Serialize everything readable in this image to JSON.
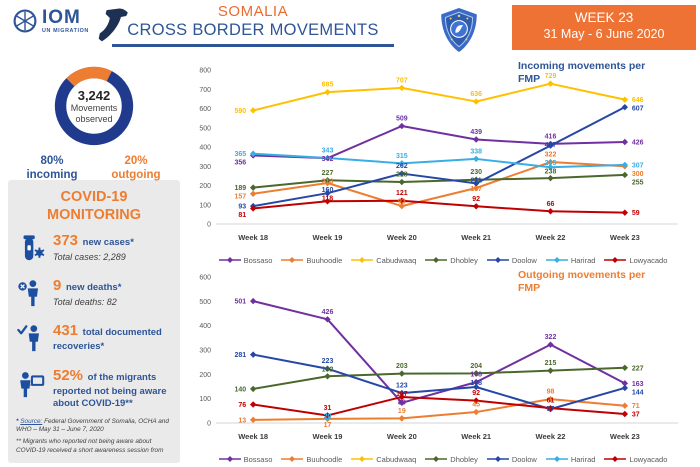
{
  "header": {
    "logo_text": "IOM",
    "logo_sub": "UN MIGRATION",
    "title": "SOMALIA",
    "subtitle": "CROSS BORDER MOVEMENTS",
    "week": "WEEK 23",
    "date_range": "31 May -  6 June 2020",
    "icons": [
      "iom-emblem-icon",
      "somalia-map-icon",
      "somalia-crest-icon"
    ]
  },
  "movements": {
    "total": "3,242",
    "label1": "Movements",
    "label2": "observed",
    "incoming_pct": "80%",
    "incoming_label": "incoming",
    "outgoing_pct": "20%",
    "outgoing_label": "outgoing"
  },
  "covid": {
    "title_line1": "COVID-19",
    "title_line2": "MONITORING",
    "stats": [
      {
        "icon": "vial-virus-icon",
        "value": "373",
        "label": "new cases*",
        "sub": "Total cases: 2,289"
      },
      {
        "icon": "person-x-icon",
        "value": "9",
        "label": "new deaths*",
        "sub": "Total deaths: 82"
      },
      {
        "icon": "person-check-icon",
        "value": "431",
        "label": "total documented recoveries*",
        "sub": ""
      },
      {
        "icon": "person-speech-bubble-icon",
        "value": "52%",
        "label": "of the migrants reported not being aware about COVID-19**",
        "sub": ""
      }
    ],
    "footnote1_star": "*",
    "footnote1_link": "Source:",
    "footnote1_rest": " Federal Government of Somalia, OCHA and WHO – May 31 – June 7, 2020",
    "footnote2": "** Migrants who reported not being aware about COVID-19 received a short awareness session from"
  },
  "colors": {
    "brand_blue": "#2E5597",
    "brand_orange": "#ED7D31",
    "donut_blue": "#203B8E",
    "week_box_orange": "#ED7233",
    "icon_blue": "#1D4FA1"
  },
  "chart_data": [
    {
      "type": "line",
      "title": "Incoming movements per FMP",
      "title_color": "#2E5597",
      "categories": [
        "Week 18",
        "Week 19",
        "Week 20",
        "Week 21",
        "Week 22",
        "Week 23"
      ],
      "ylim": [
        0,
        800
      ],
      "ytick_step": 100,
      "grid": false,
      "legend_position": "bottom",
      "series": [
        {
          "name": "Bossaso",
          "color": "#7030A0",
          "values": [
            356,
            342,
            509,
            439,
            416,
            426
          ]
        },
        {
          "name": "Buuhoodle",
          "color": "#ED7D31",
          "values": [
            157,
            213,
            93,
            187,
            322,
            300
          ]
        },
        {
          "name": "Cabudwaaq",
          "color": "#FFC000",
          "values": [
            590,
            685,
            707,
            636,
            729,
            646
          ]
        },
        {
          "name": "Dhobley",
          "color": "#4A682C",
          "values": [
            189,
            227,
            218,
            230,
            238,
            255
          ]
        },
        {
          "name": "Doolow",
          "color": "#2647A5",
          "values": [
            93,
            160,
            262,
            211,
            407,
            607
          ]
        },
        {
          "name": "Harirad",
          "color": "#38AEE4",
          "values": [
            365,
            343,
            315,
            338,
            295,
            307
          ]
        },
        {
          "name": "Lowyacado",
          "color": "#C00000",
          "values": [
            81,
            118,
            121,
            92,
            66,
            59
          ]
        }
      ]
    },
    {
      "type": "line",
      "title": "Outgoing movements per FMP",
      "title_color": "#ED7D31",
      "categories": [
        "Week 18",
        "Week 19",
        "Week 20",
        "Week 21",
        "Week 22",
        "Week 23"
      ],
      "ylim": [
        0,
        600
      ],
      "ytick_step": 100,
      "grid": false,
      "legend_position": "bottom",
      "series": [
        {
          "name": "Bossaso",
          "color": "#7030A0",
          "values": [
            501,
            426,
            83,
            168,
            322,
            163
          ]
        },
        {
          "name": "Buuhoodle",
          "color": "#ED7D31",
          "values": [
            13,
            17,
            19,
            45,
            98,
            71
          ]
        },
        {
          "name": "Cabudwaaq",
          "color": "#FFC000",
          "values": [
            null,
            null,
            null,
            null,
            null,
            null
          ]
        },
        {
          "name": "Dhobley",
          "color": "#4A682C",
          "values": [
            140,
            192,
            203,
            204,
            215,
            227
          ]
        },
        {
          "name": "Doolow",
          "color": "#2647A5",
          "values": [
            281,
            223,
            123,
            148,
            57,
            144
          ]
        },
        {
          "name": "Harirad",
          "color": "#38AEE4",
          "values": [
            null,
            20,
            null,
            null,
            null,
            null
          ]
        },
        {
          "name": "Lowyacado",
          "color": "#C00000",
          "values": [
            76,
            31,
            107,
            92,
            61,
            37
          ]
        }
      ]
    },
    {
      "type": "pie",
      "title": "Movements observed",
      "total": "3,242",
      "slices": [
        {
          "label": "incoming",
          "pct": 80,
          "color": "#203B8E"
        },
        {
          "label": "outgoing",
          "pct": 20,
          "color": "#ED7D31"
        }
      ]
    }
  ]
}
